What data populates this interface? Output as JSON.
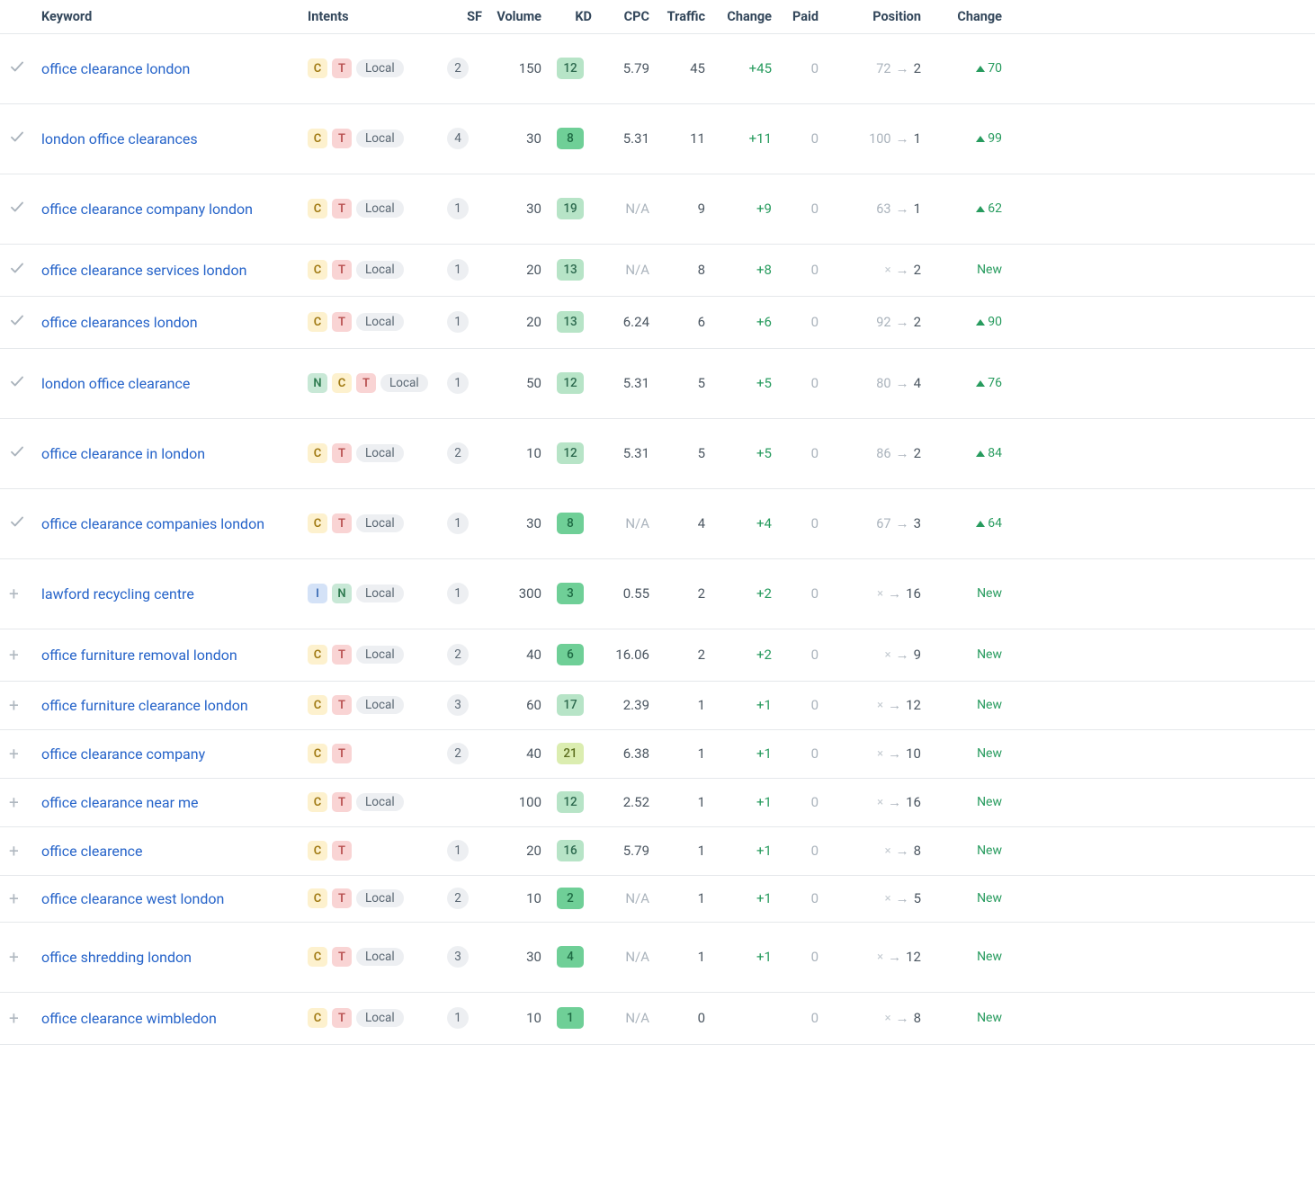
{
  "columns": {
    "keyword": "Keyword",
    "intents": "Intents",
    "sf": "SF",
    "volume": "Volume",
    "kd": "KD",
    "cpc": "CPC",
    "traffic": "Traffic",
    "change": "Change",
    "paid": "Paid",
    "position": "Position",
    "poschange": "Change"
  },
  "intent_colors": {
    "C": {
      "bg": "#fdf1ce",
      "fg": "#a07912"
    },
    "T": {
      "bg": "#f9d4d4",
      "fg": "#b85050"
    },
    "N": {
      "bg": "#c8e8d6",
      "fg": "#2d7a4f"
    },
    "I": {
      "bg": "#d4e2f7",
      "fg": "#3b6cb5"
    }
  },
  "badge_colors": {
    "local_bg": "#edeff2",
    "local_fg": "#5a6773",
    "sf_bg": "#edeff2",
    "sf_fg": "#5a6773"
  },
  "kd_colors": {
    "low": {
      "bg": "#6fcf97",
      "fg": "#1e6b44"
    },
    "mid": {
      "bg": "#b7e4c7",
      "fg": "#2d6a4f"
    },
    "high": {
      "bg": "#dbedb0",
      "fg": "#5c6e1e"
    }
  },
  "text_colors": {
    "link": "#2563c9",
    "value": "#4a5560",
    "muted": "#aab3bc",
    "green": "#279b5e",
    "header": "#33475b"
  },
  "local_label": "Local",
  "rows": [
    {
      "icon": "check",
      "row_height": "tall",
      "keyword": "office clearance london",
      "intents": [
        "C",
        "T"
      ],
      "local": true,
      "sf": "2",
      "volume": "150",
      "kd": "12",
      "kd_tier": "mid",
      "cpc": "5.79",
      "traffic": "45",
      "change": "+45",
      "paid": "0",
      "pos_from": "72",
      "pos_to": "2",
      "pos_change": "70",
      "pos_change_type": "up"
    },
    {
      "icon": "check",
      "row_height": "tall",
      "keyword": "london office clearances",
      "intents": [
        "C",
        "T"
      ],
      "local": true,
      "sf": "4",
      "volume": "30",
      "kd": "8",
      "kd_tier": "low",
      "cpc": "5.31",
      "traffic": "11",
      "change": "+11",
      "paid": "0",
      "pos_from": "100",
      "pos_to": "1",
      "pos_change": "99",
      "pos_change_type": "up"
    },
    {
      "icon": "check",
      "row_height": "tall",
      "keyword": "office clearance company london",
      "intents": [
        "C",
        "T"
      ],
      "local": true,
      "sf": "1",
      "volume": "30",
      "kd": "19",
      "kd_tier": "mid",
      "cpc": "N/A",
      "cpc_muted": true,
      "traffic": "9",
      "change": "+9",
      "paid": "0",
      "pos_from": "63",
      "pos_to": "1",
      "pos_change": "62",
      "pos_change_type": "up"
    },
    {
      "icon": "check",
      "row_height": "normal",
      "keyword": "office clearance services london",
      "intents": [
        "C",
        "T"
      ],
      "local": true,
      "sf": "1",
      "volume": "20",
      "kd": "13",
      "kd_tier": "mid",
      "cpc": "N/A",
      "cpc_muted": true,
      "traffic": "8",
      "change": "+8",
      "paid": "0",
      "pos_from": "x",
      "pos_to": "2",
      "pos_change": "New",
      "pos_change_type": "new"
    },
    {
      "icon": "check",
      "row_height": "normal",
      "keyword": "office clearances london",
      "intents": [
        "C",
        "T"
      ],
      "local": true,
      "sf": "1",
      "volume": "20",
      "kd": "13",
      "kd_tier": "mid",
      "cpc": "6.24",
      "traffic": "6",
      "change": "+6",
      "paid": "0",
      "pos_from": "92",
      "pos_to": "2",
      "pos_change": "90",
      "pos_change_type": "up"
    },
    {
      "icon": "check",
      "row_height": "tall",
      "keyword": "london office clearance",
      "intents": [
        "N",
        "C",
        "T"
      ],
      "local": true,
      "sf": "1",
      "volume": "50",
      "kd": "12",
      "kd_tier": "mid",
      "cpc": "5.31",
      "traffic": "5",
      "change": "+5",
      "paid": "0",
      "pos_from": "80",
      "pos_to": "4",
      "pos_change": "76",
      "pos_change_type": "up"
    },
    {
      "icon": "check",
      "row_height": "tall",
      "keyword": "office clearance in london",
      "intents": [
        "C",
        "T"
      ],
      "local": true,
      "sf": "2",
      "volume": "10",
      "kd": "12",
      "kd_tier": "mid",
      "cpc": "5.31",
      "traffic": "5",
      "change": "+5",
      "paid": "0",
      "pos_from": "86",
      "pos_to": "2",
      "pos_change": "84",
      "pos_change_type": "up"
    },
    {
      "icon": "check",
      "row_height": "tall",
      "keyword": "office clearance companies london",
      "intents": [
        "C",
        "T"
      ],
      "local": true,
      "sf": "1",
      "volume": "30",
      "kd": "8",
      "kd_tier": "low",
      "cpc": "N/A",
      "cpc_muted": true,
      "traffic": "4",
      "change": "+4",
      "paid": "0",
      "pos_from": "67",
      "pos_to": "3",
      "pos_change": "64",
      "pos_change_type": "up"
    },
    {
      "icon": "plus",
      "row_height": "tall",
      "keyword": "lawford recycling centre",
      "intents": [
        "I",
        "N"
      ],
      "local": true,
      "sf": "1",
      "volume": "300",
      "kd": "3",
      "kd_tier": "low",
      "cpc": "0.55",
      "traffic": "2",
      "change": "+2",
      "paid": "0",
      "pos_from": "x",
      "pos_to": "16",
      "pos_change": "New",
      "pos_change_type": "new"
    },
    {
      "icon": "plus",
      "row_height": "normal",
      "keyword": "office furniture removal london",
      "intents": [
        "C",
        "T"
      ],
      "local": true,
      "sf": "2",
      "volume": "40",
      "kd": "6",
      "kd_tier": "low",
      "cpc": "16.06",
      "traffic": "2",
      "change": "+2",
      "paid": "0",
      "pos_from": "x",
      "pos_to": "9",
      "pos_change": "New",
      "pos_change_type": "new"
    },
    {
      "icon": "plus",
      "row_height": "short1",
      "keyword": "office furniture clearance london",
      "intents": [
        "C",
        "T"
      ],
      "local": true,
      "sf": "3",
      "volume": "60",
      "kd": "17",
      "kd_tier": "mid",
      "cpc": "2.39",
      "traffic": "1",
      "change": "+1",
      "paid": "0",
      "pos_from": "x",
      "pos_to": "12",
      "pos_change": "New",
      "pos_change_type": "new"
    },
    {
      "icon": "plus",
      "row_height": "short1",
      "keyword": "office clearance company",
      "intents": [
        "C",
        "T"
      ],
      "local": false,
      "sf": "2",
      "volume": "40",
      "kd": "21",
      "kd_tier": "high",
      "cpc": "6.38",
      "traffic": "1",
      "change": "+1",
      "paid": "0",
      "pos_from": "x",
      "pos_to": "10",
      "pos_change": "New",
      "pos_change_type": "new"
    },
    {
      "icon": "plus",
      "row_height": "short1",
      "keyword": "office clearance near me",
      "intents": [
        "C",
        "T"
      ],
      "local": true,
      "sf": "",
      "volume": "100",
      "kd": "12",
      "kd_tier": "mid",
      "cpc": "2.52",
      "traffic": "1",
      "change": "+1",
      "paid": "0",
      "pos_from": "x",
      "pos_to": "16",
      "pos_change": "New",
      "pos_change_type": "new"
    },
    {
      "icon": "plus",
      "row_height": "short1",
      "keyword": "office clearence",
      "intents": [
        "C",
        "T"
      ],
      "local": false,
      "sf": "1",
      "volume": "20",
      "kd": "16",
      "kd_tier": "mid",
      "cpc": "5.79",
      "traffic": "1",
      "change": "+1",
      "paid": "0",
      "pos_from": "x",
      "pos_to": "8",
      "pos_change": "New",
      "pos_change_type": "new"
    },
    {
      "icon": "plus",
      "row_height": "short2",
      "keyword": "office clearance west london",
      "intents": [
        "C",
        "T"
      ],
      "local": true,
      "sf": "2",
      "volume": "10",
      "kd": "2",
      "kd_tier": "low",
      "cpc": "N/A",
      "cpc_muted": true,
      "traffic": "1",
      "change": "+1",
      "paid": "0",
      "pos_from": "x",
      "pos_to": "5",
      "pos_change": "New",
      "pos_change_type": "new"
    },
    {
      "icon": "plus",
      "row_height": "tall",
      "keyword": "office shredding london",
      "intents": [
        "C",
        "T"
      ],
      "local": true,
      "sf": "3",
      "volume": "30",
      "kd": "4",
      "kd_tier": "low",
      "cpc": "N/A",
      "cpc_muted": true,
      "traffic": "1",
      "change": "+1",
      "paid": "0",
      "pos_from": "x",
      "pos_to": "12",
      "pos_change": "New",
      "pos_change_type": "new"
    },
    {
      "icon": "plus",
      "row_height": "normal",
      "keyword": "office clearance wimbledon",
      "intents": [
        "C",
        "T"
      ],
      "local": true,
      "sf": "1",
      "volume": "10",
      "kd": "1",
      "kd_tier": "low",
      "cpc": "N/A",
      "cpc_muted": true,
      "traffic": "0",
      "change": "",
      "paid": "0",
      "pos_from": "x",
      "pos_to": "8",
      "pos_change": "New",
      "pos_change_type": "new"
    }
  ]
}
